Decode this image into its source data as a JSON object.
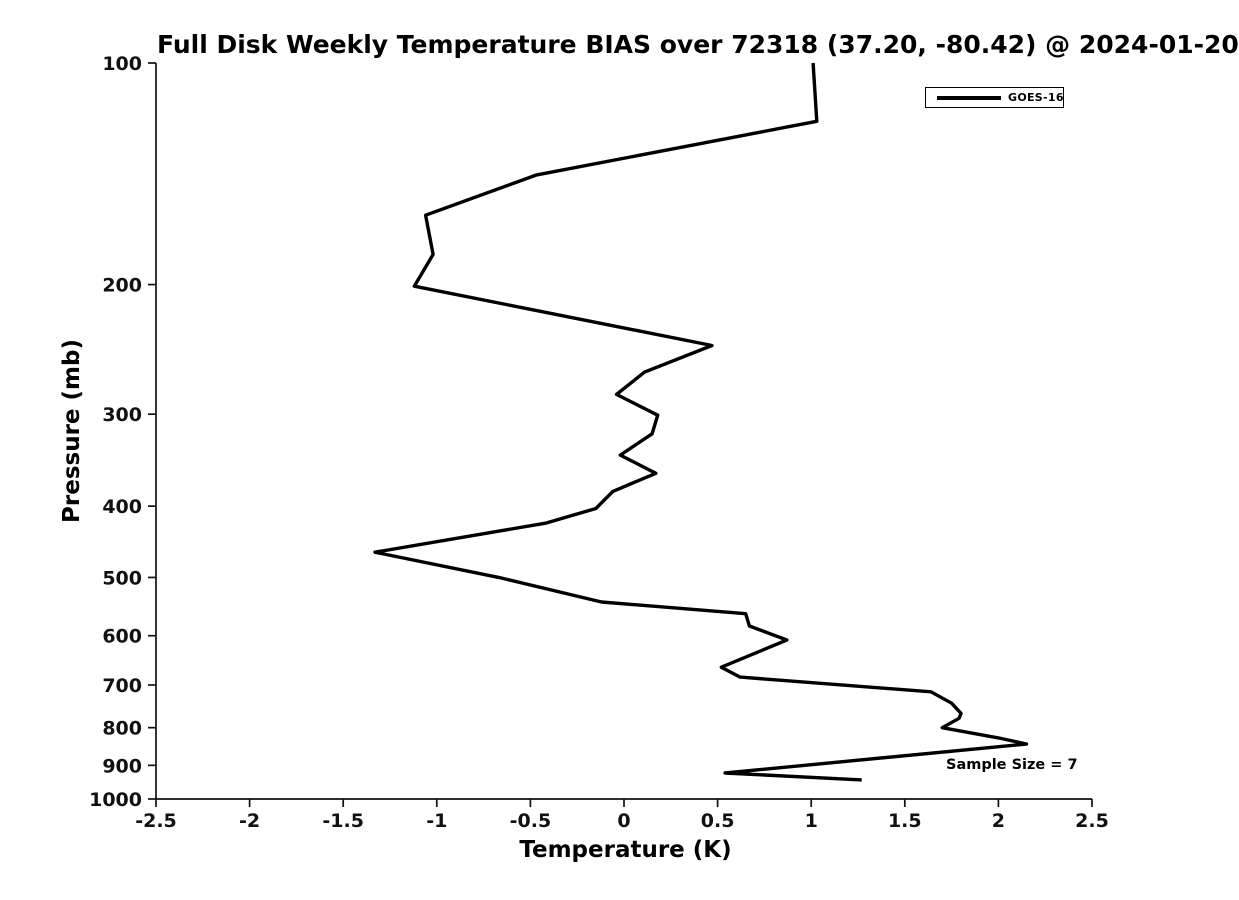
{
  "title": "Full Disk Weekly Temperature BIAS over 72318 (37.20, -80.42) @ 2024-01-20",
  "station": {
    "id": "72318",
    "lat": "37.20",
    "lon": "-80.42",
    "date": "2024-01-20"
  },
  "legend": {
    "position": "top-right",
    "items": [
      {
        "label": "GOES-16",
        "line_color": "#000000"
      }
    ]
  },
  "annotation": {
    "text": "Sample Size = 7"
  },
  "colors": {
    "background": "#ffffff",
    "axis": "#111111",
    "text": "#000000",
    "profile_line": "#000000"
  },
  "chart_data": {
    "type": "line",
    "title": "Full Disk Weekly Temperature BIAS over 72318 (37.20, -80.42) @ 2024-01-20",
    "xlabel": "Temperature (K)",
    "ylabel": "Pressure (mb)",
    "xlim": [
      -2.5,
      2.5
    ],
    "ylim": [
      100,
      1000
    ],
    "x_scale": "linear",
    "y_scale": "log",
    "y_direction": "increasing-downward",
    "grid": false,
    "legend_position": "top-right",
    "sample_size": 7,
    "x_ticks": [
      {
        "value": -2.5,
        "label": "-2.5"
      },
      {
        "value": -2,
        "label": "-2"
      },
      {
        "value": -1.5,
        "label": "-1.5"
      },
      {
        "value": -1,
        "label": "-1"
      },
      {
        "value": -0.5,
        "label": "-0.5"
      },
      {
        "value": 0,
        "label": "0"
      },
      {
        "value": 0.5,
        "label": "0.5"
      },
      {
        "value": 1,
        "label": "1"
      },
      {
        "value": 1.5,
        "label": "1.5"
      },
      {
        "value": 2,
        "label": "2"
      },
      {
        "value": 2.5,
        "label": "2.5"
      }
    ],
    "y_ticks": [
      100,
      200,
      300,
      400,
      500,
      600,
      700,
      800,
      900,
      1000
    ],
    "series": [
      {
        "name": "GOES-16",
        "color": "#000000",
        "line_width": 3.4,
        "points": [
          {
            "pressure_mb": 100,
            "bias_K": 1.01
          },
          {
            "pressure_mb": 120,
            "bias_K": 1.03
          },
          {
            "pressure_mb": 142,
            "bias_K": -0.47
          },
          {
            "pressure_mb": 161,
            "bias_K": -1.06
          },
          {
            "pressure_mb": 182,
            "bias_K": -1.02
          },
          {
            "pressure_mb": 201,
            "bias_K": -1.12
          },
          {
            "pressure_mb": 242,
            "bias_K": 0.47
          },
          {
            "pressure_mb": 263,
            "bias_K": 0.11
          },
          {
            "pressure_mb": 282,
            "bias_K": -0.04
          },
          {
            "pressure_mb": 301,
            "bias_K": 0.18
          },
          {
            "pressure_mb": 319,
            "bias_K": 0.15
          },
          {
            "pressure_mb": 341,
            "bias_K": -0.02
          },
          {
            "pressure_mb": 361,
            "bias_K": 0.17
          },
          {
            "pressure_mb": 382,
            "bias_K": -0.06
          },
          {
            "pressure_mb": 403,
            "bias_K": -0.15
          },
          {
            "pressure_mb": 422,
            "bias_K": -0.42
          },
          {
            "pressure_mb": 462,
            "bias_K": -1.33
          },
          {
            "pressure_mb": 500,
            "bias_K": -0.67
          },
          {
            "pressure_mb": 540,
            "bias_K": -0.12
          },
          {
            "pressure_mb": 560,
            "bias_K": 0.65
          },
          {
            "pressure_mb": 582,
            "bias_K": 0.67
          },
          {
            "pressure_mb": 608,
            "bias_K": 0.87
          },
          {
            "pressure_mb": 662,
            "bias_K": 0.52
          },
          {
            "pressure_mb": 683,
            "bias_K": 0.62
          },
          {
            "pressure_mb": 715,
            "bias_K": 1.64
          },
          {
            "pressure_mb": 741,
            "bias_K": 1.75
          },
          {
            "pressure_mb": 765,
            "bias_K": 1.8
          },
          {
            "pressure_mb": 777,
            "bias_K": 1.79
          },
          {
            "pressure_mb": 800,
            "bias_K": 1.7
          },
          {
            "pressure_mb": 826,
            "bias_K": 2.0
          },
          {
            "pressure_mb": 842,
            "bias_K": 2.15
          },
          {
            "pressure_mb": 922,
            "bias_K": 0.54
          },
          {
            "pressure_mb": 942,
            "bias_K": 1.27
          }
        ]
      }
    ]
  }
}
